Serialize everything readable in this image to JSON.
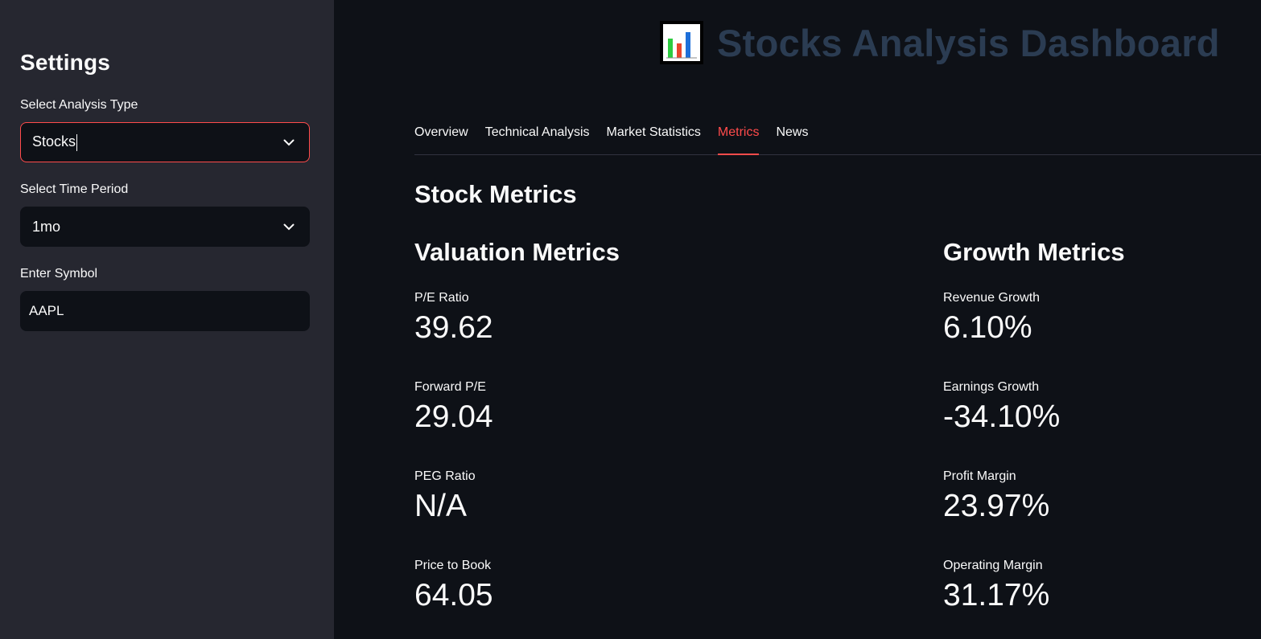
{
  "sidebar": {
    "title": "Settings",
    "analysis_type": {
      "label": "Select Analysis Type",
      "value": "Stocks"
    },
    "time_period": {
      "label": "Select Time Period",
      "value": "1mo"
    },
    "symbol": {
      "label": "Enter Symbol",
      "value": "AAPL"
    }
  },
  "header": {
    "title": "Stocks Analysis Dashboard",
    "icon": "bar-chart-icon"
  },
  "tabs": [
    "Overview",
    "Technical Analysis",
    "Market Statistics",
    "Metrics",
    "News"
  ],
  "active_tab": "Metrics",
  "main": {
    "section_title": "Stock Metrics",
    "valuation": {
      "title": "Valuation Metrics",
      "metrics": [
        {
          "label": "P/E Ratio",
          "value": "39.62"
        },
        {
          "label": "Forward P/E",
          "value": "29.04"
        },
        {
          "label": "PEG Ratio",
          "value": "N/A"
        },
        {
          "label": "Price to Book",
          "value": "64.05"
        }
      ]
    },
    "growth": {
      "title": "Growth Metrics",
      "metrics": [
        {
          "label": "Revenue Growth",
          "value": "6.10%"
        },
        {
          "label": "Earnings Growth",
          "value": "-34.10%"
        },
        {
          "label": "Profit Margin",
          "value": "23.97%"
        },
        {
          "label": "Operating Margin",
          "value": "31.17%"
        }
      ]
    }
  },
  "colors": {
    "accent": "#ff4b4b",
    "sidebar_bg": "#262730",
    "main_bg": "#0e1117",
    "title_color": "#2b3c52"
  }
}
